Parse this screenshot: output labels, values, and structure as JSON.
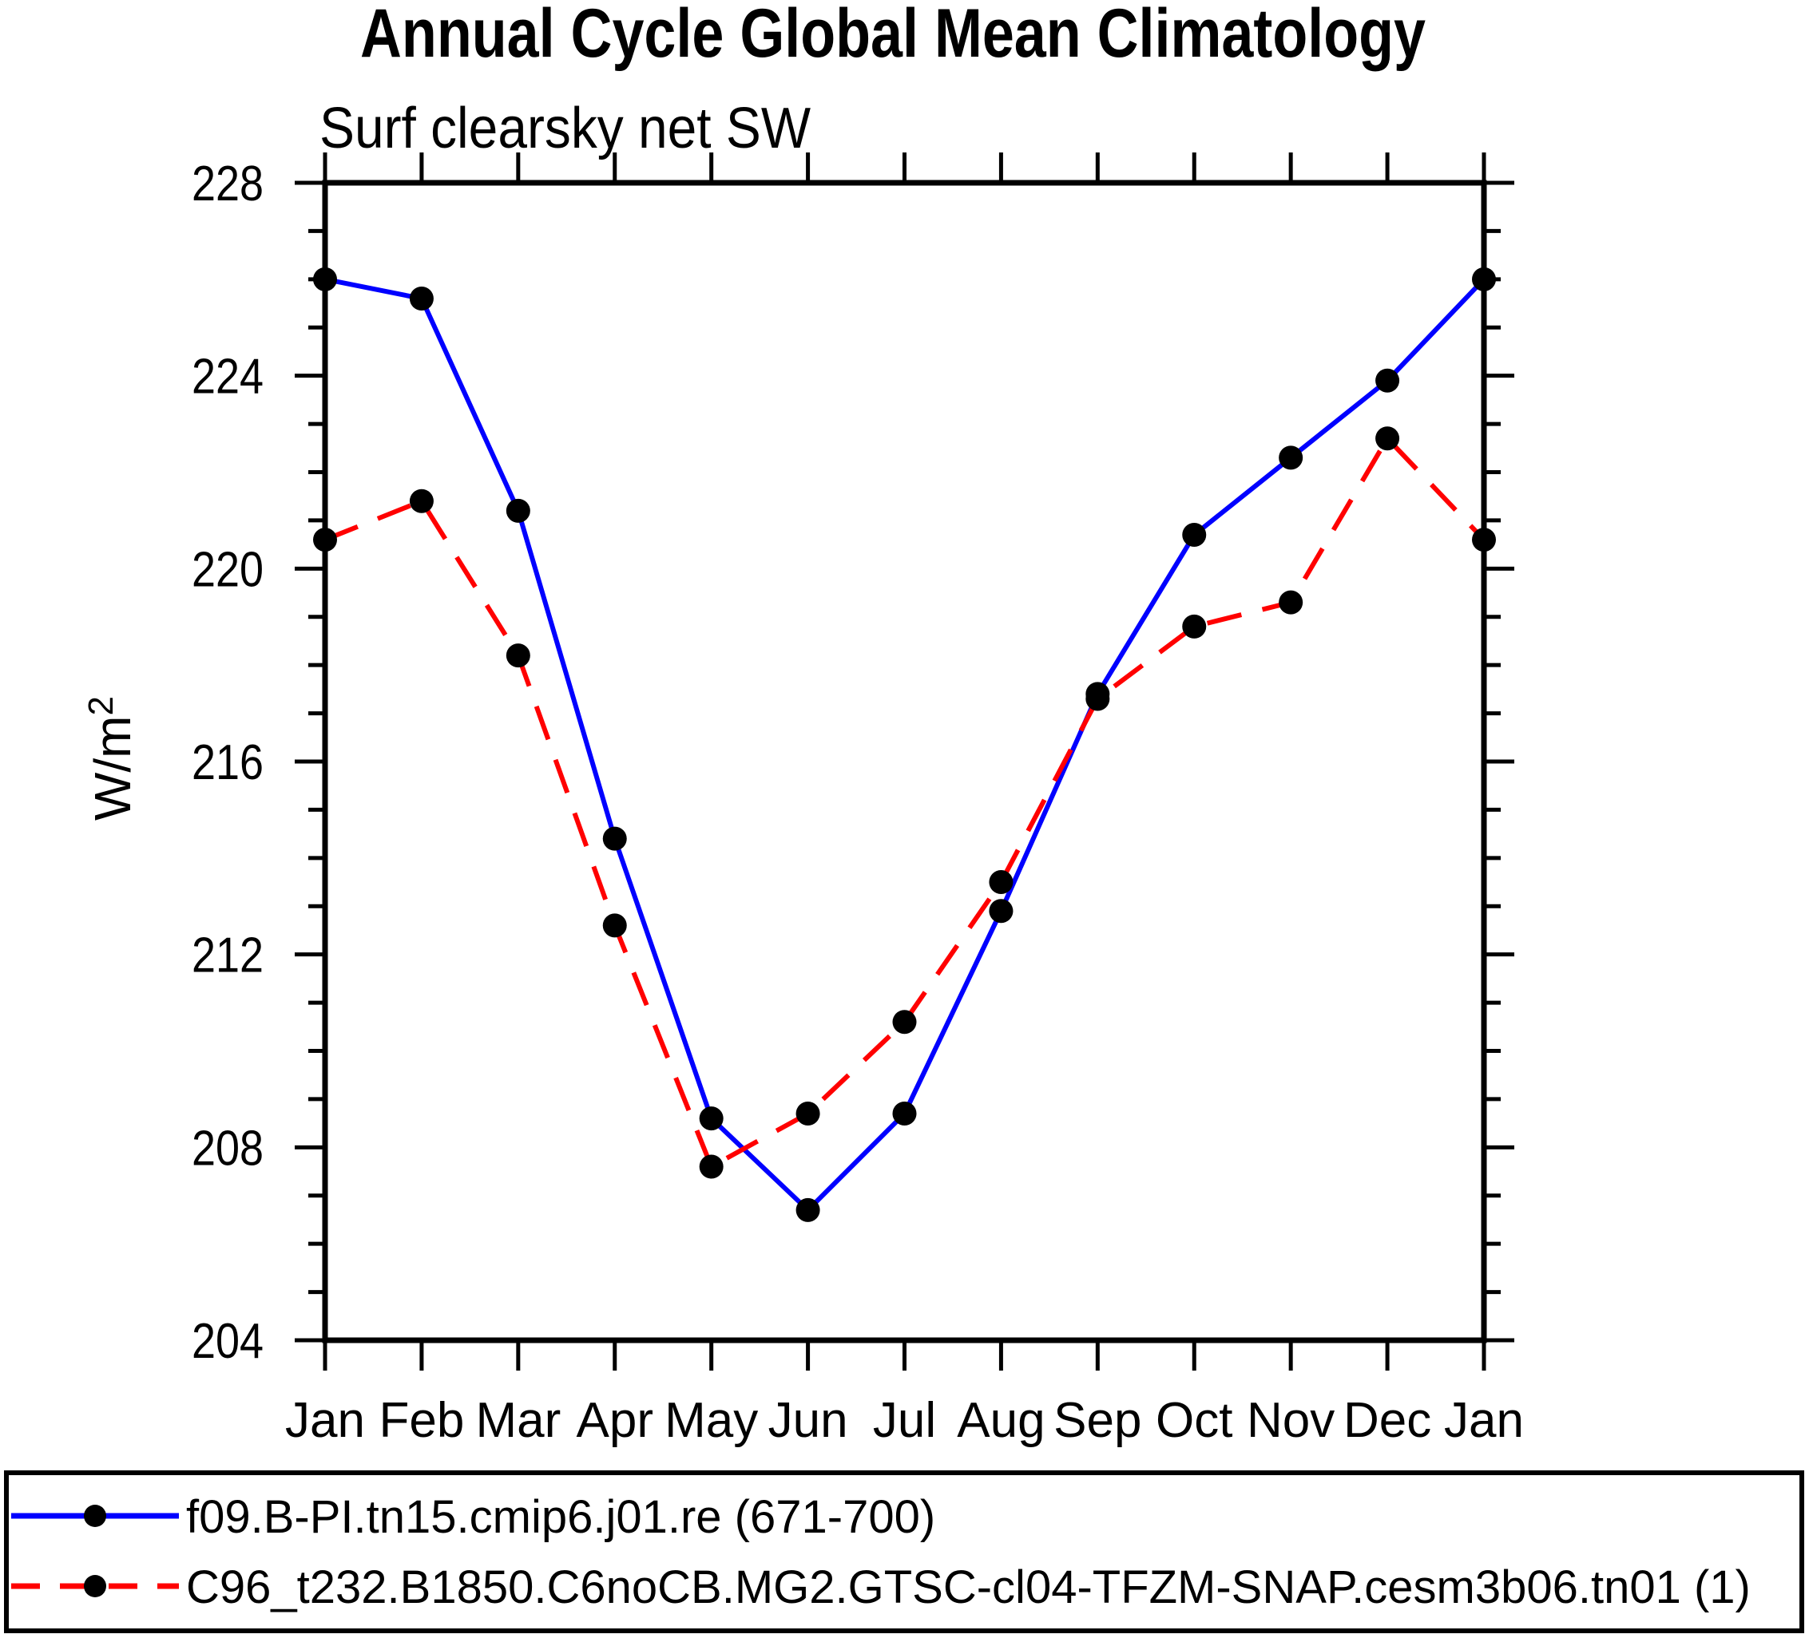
{
  "title": "Annual Cycle Global Mean Climatology",
  "subtitle": "Surf clearsky net SW",
  "ylabel_base": "W/m",
  "ylabel_sup": "2",
  "colors": {
    "series1": "#0000ff",
    "series2": "#ff0000",
    "marker": "#000000",
    "axis": "#000000",
    "background": "#ffffff"
  },
  "chart_data": {
    "type": "line",
    "categories": [
      "Jan",
      "Feb",
      "Mar",
      "Apr",
      "May",
      "Jun",
      "Jul",
      "Aug",
      "Sep",
      "Oct",
      "Nov",
      "Dec",
      "Jan"
    ],
    "series": [
      {
        "name": "f09.B-PI.tn15.cmip6.j01.re (671-700)",
        "color": "#0000ff",
        "line_style": "solid",
        "marker": "filled-circle",
        "marker_color": "#000000",
        "values": [
          226.0,
          225.6,
          221.2,
          214.4,
          208.6,
          206.7,
          208.7,
          212.9,
          217.4,
          220.7,
          222.3,
          223.9,
          226.0
        ]
      },
      {
        "name": "C96_t232.B1850.C6noCB.MG2.GTSC-cl04-TFZM-SNAP.cesm3b06.tn01 (1)",
        "color": "#ff0000",
        "line_style": "dashed",
        "marker": "filled-circle",
        "marker_color": "#000000",
        "values": [
          220.6,
          221.4,
          218.2,
          212.6,
          207.6,
          208.7,
          210.6,
          213.5,
          217.3,
          218.8,
          219.3,
          222.7,
          220.6
        ]
      }
    ],
    "xlabel": "",
    "ylabel": "W/m²",
    "ylim": [
      204,
      228
    ],
    "ytick_major_step": 4,
    "ytick_minor_step": 1,
    "ytick_labels": [
      "228",
      "224",
      "220",
      "216",
      "212",
      "208",
      "204"
    ],
    "grid": false,
    "legend_position": "bottom"
  }
}
